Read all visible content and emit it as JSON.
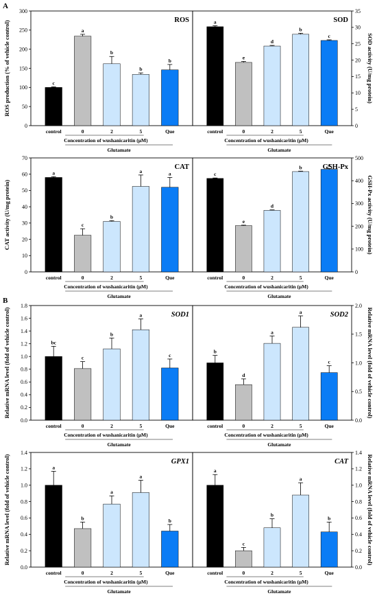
{
  "panel_labels": [
    "A",
    "B"
  ],
  "group_labels": {
    "concentration": "Concentration of wushanicaritin (μM)",
    "glutamate": "Glutamate"
  },
  "colors": {
    "control": "#000000",
    "c0": "#c0c0c0",
    "c2": "#cce6fd",
    "c5": "#cce6fd",
    "que": "#0a7cf5"
  },
  "chart_data": [
    {
      "id": "ros",
      "type": "bar",
      "title": "ROS",
      "title_italic": false,
      "categories": [
        "control",
        "0",
        "2",
        "5",
        "Que"
      ],
      "values": [
        100,
        234,
        162,
        134,
        146
      ],
      "errors": [
        1.5,
        5,
        19,
        4,
        14
      ],
      "letters": [
        "c",
        "a",
        "b",
        "b",
        "b"
      ],
      "ylabel": "ROS production (% of vehicle control)",
      "yaxis_side": "left",
      "ylim": [
        0,
        300
      ],
      "yticks": [
        0,
        50,
        100,
        150,
        200,
        250,
        300
      ],
      "ytick_labels": [
        "0",
        "50",
        "100",
        "150",
        "200",
        "250",
        "300"
      ]
    },
    {
      "id": "sod",
      "type": "bar",
      "title": "SOD",
      "title_italic": false,
      "categories": [
        "control",
        "0",
        "2",
        "5",
        "Que"
      ],
      "values": [
        30.2,
        19.3,
        24.3,
        27.9,
        26.0
      ],
      "errors": [
        0.3,
        0.3,
        0.2,
        0.3,
        0.2
      ],
      "letters": [
        "a",
        "e",
        "d",
        "b",
        "c"
      ],
      "ylabel": "SOD activity (U/mg protein)",
      "yaxis_side": "right",
      "ylim": [
        0,
        35
      ],
      "yticks": [
        0,
        5,
        10,
        15,
        20,
        25,
        30,
        35
      ],
      "ytick_labels": [
        "0",
        "5",
        "10",
        "15",
        "20",
        "25",
        "30",
        "35"
      ]
    },
    {
      "id": "cat",
      "type": "bar",
      "title": "CAT",
      "title_italic": false,
      "categories": [
        "control",
        "0",
        "2",
        "5",
        "Que"
      ],
      "values": [
        58,
        22.5,
        31,
        52.5,
        52
      ],
      "errors": [
        0.5,
        4,
        0.5,
        7,
        6
      ],
      "letters": [
        "a",
        "c",
        "b",
        "a",
        "a"
      ],
      "ylabel": "CAT activity (U/mg protein)",
      "yaxis_side": "left",
      "ylim": [
        0,
        70
      ],
      "yticks": [
        0,
        10,
        20,
        30,
        40,
        50,
        60,
        70
      ],
      "ytick_labels": [
        "0",
        "10",
        "20",
        "30",
        "40",
        "50",
        "60",
        "70"
      ]
    },
    {
      "id": "gshpx",
      "type": "bar",
      "title": "GSH-Px",
      "title_italic": false,
      "categories": [
        "control",
        "0",
        "2",
        "5",
        "Que"
      ],
      "values": [
        410,
        203,
        270,
        440,
        450
      ],
      "errors": [
        2,
        2,
        2,
        2,
        3
      ],
      "letters": [
        "c",
        "e",
        "d",
        "b",
        "a"
      ],
      "ylabel": "GSH-Px activity (U/mg protein)",
      "yaxis_side": "right",
      "ylim": [
        0,
        500
      ],
      "yticks": [
        0,
        100,
        200,
        300,
        400,
        500
      ],
      "ytick_labels": [
        "0",
        "100",
        "200",
        "300",
        "400",
        "500"
      ]
    },
    {
      "id": "sod1",
      "type": "bar",
      "title": "SOD1",
      "title_italic": true,
      "categories": [
        "control",
        "0",
        "2",
        "5",
        "Que"
      ],
      "values": [
        1.0,
        0.81,
        1.12,
        1.42,
        0.82
      ],
      "errors": [
        0.16,
        0.11,
        0.17,
        0.17,
        0.14
      ],
      "letters": [
        "bc",
        "c",
        "b",
        "a",
        "c"
      ],
      "ylabel": "Relative mRNA level (fold of vehicle control)",
      "yaxis_side": "left",
      "ylim": [
        0,
        1.8
      ],
      "yticks": [
        0,
        0.2,
        0.4,
        0.6,
        0.8,
        1.0,
        1.2,
        1.4,
        1.6,
        1.8
      ],
      "ytick_labels": [
        "0.0",
        "0.2",
        "0.4",
        "0.6",
        "0.8",
        "1.0",
        "1.2",
        "1.4",
        "1.6",
        "1.8"
      ]
    },
    {
      "id": "sod2",
      "type": "bar",
      "title": "SOD2",
      "title_italic": true,
      "categories": [
        "control",
        "0",
        "2",
        "5",
        "Que"
      ],
      "values": [
        1.0,
        0.62,
        1.34,
        1.62,
        0.83
      ],
      "errors": [
        0.13,
        0.1,
        0.13,
        0.2,
        0.12
      ],
      "letters": [
        "b",
        "d",
        "a",
        "a",
        "c"
      ],
      "ylabel": "Relative mRNA level (fold of vehicle control)",
      "yaxis_side": "right",
      "ylim": [
        0,
        2.0
      ],
      "yticks": [
        0,
        0.5,
        1.0,
        1.5,
        2.0
      ],
      "ytick_labels": [
        "0.0",
        "0.5",
        "1.0",
        "1.5",
        "2.0"
      ]
    },
    {
      "id": "gpx1",
      "type": "bar",
      "title": "GPX1",
      "title_italic": true,
      "categories": [
        "control",
        "0",
        "2",
        "5",
        "Que"
      ],
      "values": [
        1.0,
        0.47,
        0.77,
        0.91,
        0.44
      ],
      "errors": [
        0.17,
        0.08,
        0.1,
        0.15,
        0.08
      ],
      "letters": [
        "a",
        "b",
        "a",
        "a",
        "b"
      ],
      "ylabel": "Relative mRNA level (fold of vehicle control)",
      "yaxis_side": "left",
      "ylim": [
        0,
        1.4
      ],
      "yticks": [
        0,
        0.2,
        0.4,
        0.6,
        0.8,
        1.0,
        1.2,
        1.4
      ],
      "ytick_labels": [
        "0.0",
        "0.2",
        "0.4",
        "0.6",
        "0.8",
        "1.0",
        "1.2",
        "1.4"
      ]
    },
    {
      "id": "cat_mrna",
      "type": "bar",
      "title": "CAT",
      "title_italic": true,
      "categories": [
        "control",
        "0",
        "2",
        "5",
        "Que"
      ],
      "values": [
        1.0,
        0.2,
        0.48,
        0.88,
        0.43
      ],
      "errors": [
        0.13,
        0.04,
        0.11,
        0.15,
        0.12
      ],
      "letters": [
        "a",
        "c",
        "b",
        "a",
        "b"
      ],
      "ylabel": "Relative mRNA level (fold of vehicle control)",
      "yaxis_side": "right",
      "ylim": [
        0,
        1.4
      ],
      "yticks": [
        0,
        0.2,
        0.4,
        0.6,
        0.8,
        1.0,
        1.2,
        1.4
      ],
      "ytick_labels": [
        "0.0",
        "0.2",
        "0.4",
        "0.6",
        "0.8",
        "1.0",
        "1.2",
        "1.4"
      ]
    }
  ]
}
